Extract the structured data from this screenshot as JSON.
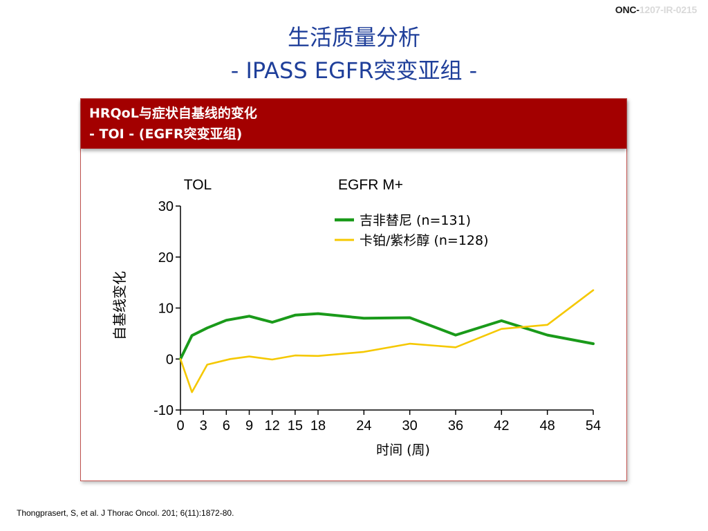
{
  "slide": {
    "code_part1": "ONC-",
    "code_part2": "1207-IR-0215",
    "title_line1": "生活质量分析",
    "title_line2": "- IPASS EGFR突变亚组 -",
    "citation": "Thongprasert, S, et al. J Thorac Oncol. 201; 6(11):1872-80."
  },
  "panel": {
    "banner_line1": "HRQoL与症状自基线的变化",
    "banner_line2": "- TOI -  (EGFR突变亚组)"
  },
  "chart_data": {
    "type": "line",
    "title": "TOL",
    "subtitle": "EGFR M+",
    "xlabel": "时间 (周)",
    "ylabel": "自基线变化",
    "xlim": [
      0,
      54
    ],
    "ylim": [
      -10,
      30
    ],
    "x_ticks": [
      0,
      3,
      6,
      9,
      12,
      15,
      18,
      24,
      30,
      36,
      42,
      48,
      54
    ],
    "y_ticks": [
      -10,
      0,
      10,
      20,
      30
    ],
    "legend_position": "top-right",
    "series": [
      {
        "name": "吉非替尼 (n=131)",
        "color": "#1a9a1a",
        "points": [
          [
            0,
            0
          ],
          [
            1.5,
            4.6
          ],
          [
            3.5,
            6.1
          ],
          [
            6,
            7.6
          ],
          [
            9,
            8.4
          ],
          [
            12,
            7.2
          ],
          [
            15,
            8.6
          ],
          [
            18,
            8.9
          ],
          [
            24,
            8.0
          ],
          [
            30,
            8.1
          ],
          [
            36,
            4.7
          ],
          [
            42,
            7.5
          ],
          [
            48,
            4.7
          ],
          [
            54,
            3.0
          ]
        ]
      },
      {
        "name": "卡铂/紫杉醇 (n=128)",
        "color": "#f5c800",
        "points": [
          [
            0,
            0
          ],
          [
            1.5,
            -6.5
          ],
          [
            3.5,
            -1.1
          ],
          [
            6.5,
            0
          ],
          [
            9,
            0.5
          ],
          [
            12,
            -0.1
          ],
          [
            15,
            0.7
          ],
          [
            18,
            0.6
          ],
          [
            24,
            1.4
          ],
          [
            30,
            3.0
          ],
          [
            36,
            2.3
          ],
          [
            42,
            5.9
          ],
          [
            48,
            6.7
          ],
          [
            54,
            13.5
          ]
        ]
      }
    ]
  }
}
